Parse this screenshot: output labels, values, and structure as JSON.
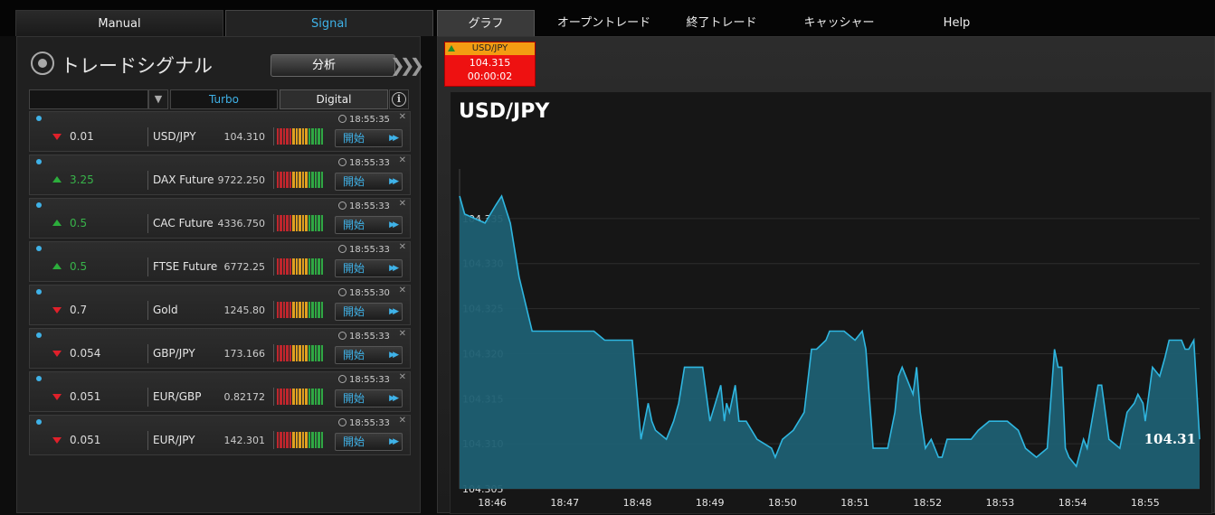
{
  "nav": {
    "tabs": [
      {
        "label": "Manual"
      },
      {
        "label": "Signal"
      },
      {
        "label": "グラフ"
      },
      {
        "label": "オープントレード"
      },
      {
        "label": "終了トレード"
      },
      {
        "label": "キャッシャー"
      },
      {
        "label": "Help"
      }
    ]
  },
  "signals_panel": {
    "title": "トレードシグナル",
    "analyze_label": "分析",
    "filters": {
      "turbo": "Turbo",
      "digital": "Digital",
      "info": "i"
    },
    "start_label": "開始",
    "rows": [
      {
        "direction": "down",
        "value": "0.01",
        "asset": "USD/JPY",
        "price": "104.310",
        "time": "18:55:35"
      },
      {
        "direction": "up",
        "value": "3.25",
        "asset": "DAX Future",
        "price": "9722.250",
        "time": "18:55:33"
      },
      {
        "direction": "up",
        "value": "0.5",
        "asset": "CAC Future",
        "price": "4336.750",
        "time": "18:55:33"
      },
      {
        "direction": "up",
        "value": "0.5",
        "asset": "FTSE Future",
        "price": "6772.25",
        "time": "18:55:33"
      },
      {
        "direction": "down",
        "value": "0.7",
        "asset": "Gold",
        "price": "1245.80",
        "time": "18:55:30"
      },
      {
        "direction": "down",
        "value": "0.054",
        "asset": "GBP/JPY",
        "price": "173.166",
        "time": "18:55:33"
      },
      {
        "direction": "down",
        "value": "0.051",
        "asset": "EUR/GBP",
        "price": "0.82172",
        "time": "18:55:33"
      },
      {
        "direction": "down",
        "value": "0.051",
        "asset": "EUR/JPY",
        "price": "142.301",
        "time": "18:55:33"
      }
    ],
    "meter_colors": [
      "#c0262d",
      "#c0262d",
      "#c0262d",
      "#c0262d",
      "#c0262d",
      "#e0a020",
      "#e0a020",
      "#e0a020",
      "#e0a020",
      "#e0a020",
      "#2fa843",
      "#2fa843",
      "#2fa843",
      "#2fa843",
      "#2fa843"
    ]
  },
  "ticker": {
    "symbol": "USD/JPY",
    "price": "104.315",
    "timer": "00:00:02",
    "direction": "up"
  },
  "colors": {
    "accent": "#3fb2e8",
    "up": "#2cae3c",
    "down": "#e0202a",
    "area_fill": "#1d5f72",
    "line": "#2fb6e0"
  },
  "chart_data": {
    "type": "area",
    "title": "USD/JPY",
    "ylim": [
      104.305,
      104.3385
    ],
    "yticks": [
      "104.335",
      "104.330",
      "104.325",
      "104.320",
      "104.315",
      "104.310",
      "104.305"
    ],
    "xticks": [
      "18:46",
      "18:47",
      "18:48",
      "18:49",
      "18:50",
      "18:51",
      "18:52",
      "18:53",
      "18:54",
      "18:55"
    ],
    "last_value_label": "104.31",
    "x_minutes": [
      0,
      0.07,
      0.35,
      0.5,
      0.58,
      0.7,
      0.82,
      1.0,
      1.25,
      1.6,
      1.85,
      2.0,
      2.25,
      2.38,
      2.5,
      2.6,
      2.65,
      2.7,
      2.85,
      2.95,
      3.02,
      3.1,
      3.35,
      3.45,
      3.6,
      3.65,
      3.68,
      3.72,
      3.8,
      3.85,
      3.95,
      4.1,
      4.3,
      4.35,
      4.45,
      4.6,
      4.75,
      4.85,
      4.92,
      5.05,
      5.1,
      5.3,
      5.45,
      5.55,
      5.6,
      5.7,
      5.8,
      5.9,
      6.0,
      6.05,
      6.1,
      6.25,
      6.3,
      6.35,
      6.42,
      6.5,
      6.55,
      6.6,
      6.65,
      6.72,
      6.85,
      6.92,
      7.05,
      7.15,
      7.3,
      7.45,
      7.55,
      7.7,
      7.8,
      7.95,
      8.1,
      8.2,
      8.25,
      8.3,
      8.35,
      8.4,
      8.5,
      8.6,
      8.65,
      8.8,
      8.85,
      8.95,
      9.1,
      9.2,
      9.3,
      9.35,
      9.42,
      9.45,
      9.55,
      9.65,
      9.72,
      9.78,
      9.88,
      9.95,
      10.0,
      10.05,
      10.12,
      10.2
    ],
    "y_values": [
      104.3375,
      104.3355,
      104.3345,
      104.3365,
      104.3375,
      104.3345,
      104.3285,
      104.3225,
      104.3225,
      104.3225,
      104.3225,
      104.3215,
      104.3215,
      104.3215,
      104.3105,
      104.3145,
      104.3125,
      104.3115,
      104.3105,
      104.3125,
      104.3145,
      104.3185,
      104.3185,
      104.3125,
      104.3165,
      104.3125,
      104.3145,
      104.3135,
      104.3165,
      104.3125,
      104.3125,
      104.3105,
      104.3095,
      104.3085,
      104.3105,
      104.3115,
      104.3135,
      104.3205,
      104.3205,
      104.3215,
      104.3225,
      104.3225,
      104.3215,
      104.3225,
      104.3205,
      104.3095,
      104.3095,
      104.3095,
      104.3135,
      104.3175,
      104.3185,
      104.3155,
      104.3185,
      104.3135,
      104.3095,
      104.3105,
      104.3095,
      104.3085,
      104.3085,
      104.3105,
      104.3105,
      104.3105,
      104.3105,
      104.3115,
      104.3125,
      104.3125,
      104.3125,
      104.3115,
      104.3095,
      104.3085,
      104.3095,
      104.3205,
      104.3185,
      104.3185,
      104.3095,
      104.3085,
      104.3075,
      104.3105,
      104.3095,
      104.3165,
      104.3165,
      104.3105,
      104.3095,
      104.3135,
      104.3145,
      104.3155,
      104.3145,
      104.3125,
      104.3185,
      104.3175,
      104.3195,
      104.3215,
      104.3215,
      104.3215,
      104.3205,
      104.3205,
      104.3215,
      104.3105
    ]
  }
}
